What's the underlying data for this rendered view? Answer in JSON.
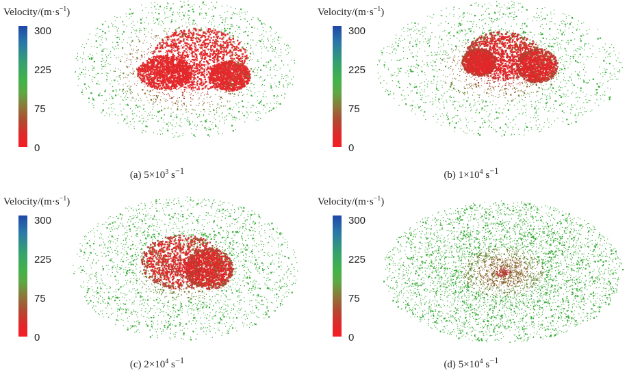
{
  "colorbar": {
    "title": "Velocity/(m·s",
    "title_exp": "−1",
    "title_close": ")",
    "ticks": [
      "300",
      "225",
      "75",
      "0"
    ],
    "colors": {
      "high": "#1f47a8",
      "mid_high": "#34a070",
      "mid": "#42b24a",
      "low_mid": "#8a7a3a",
      "low": "#f41e24"
    }
  },
  "panels": [
    {
      "label": "(a)",
      "base": "5×10",
      "exp": "3",
      "unit": "s",
      "unit_exp": "−1"
    },
    {
      "label": "(b)",
      "base": "1×10",
      "exp": "4",
      "unit": "s",
      "unit_exp": "−1"
    },
    {
      "label": "(c)",
      "base": "2×10",
      "exp": "4",
      "unit": "s",
      "unit_exp": "−1"
    },
    {
      "label": "(d)",
      "base": "5×10",
      "exp": "4",
      "unit": "s",
      "unit_exp": "−1"
    }
  ]
}
